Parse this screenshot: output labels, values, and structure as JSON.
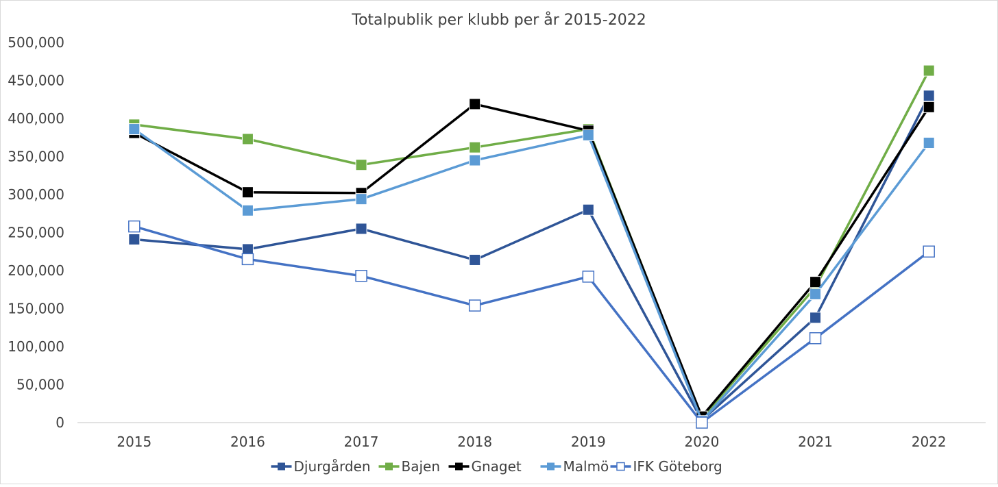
{
  "chart_data": {
    "type": "line",
    "title": "Totalpublik per klubb per år 2015-2022",
    "xlabel": "",
    "ylabel": "",
    "x": [
      "2015",
      "2016",
      "2017",
      "2018",
      "2019",
      "2020",
      "2021",
      "2022"
    ],
    "ylim": [
      0,
      500000
    ],
    "yticks": [
      0,
      50000,
      100000,
      150000,
      200000,
      250000,
      300000,
      350000,
      400000,
      450000,
      500000
    ],
    "ytick_labels": [
      "0",
      "50,000",
      "100,000",
      "150,000",
      "200,000",
      "250,000",
      "300,000",
      "350,000",
      "400,000",
      "450,000",
      "500,000"
    ],
    "grid": false,
    "legend_position": "bottom",
    "series": [
      {
        "name": "Djurgården",
        "color": "#2F5597",
        "marker": "filled-square",
        "values": [
          241000,
          228000,
          255000,
          214000,
          280000,
          3000,
          138000,
          430000
        ]
      },
      {
        "name": "Bajen",
        "color": "#70AD47",
        "marker": "filled-square",
        "values": [
          392000,
          373000,
          339000,
          362000,
          386000,
          6000,
          178000,
          463000
        ]
      },
      {
        "name": "Gnaget",
        "color": "#000000",
        "marker": "filled-square",
        "values": [
          381000,
          303000,
          302000,
          419000,
          384000,
          8000,
          185000,
          415000
        ]
      },
      {
        "name": "Malmö",
        "color": "#5B9BD5",
        "marker": "filled-square",
        "values": [
          386000,
          279000,
          294000,
          345000,
          378000,
          2000,
          169000,
          368000
        ]
      },
      {
        "name": "IFK Göteborg",
        "color": "#4472C4",
        "marker": "hollow-square",
        "values": [
          258000,
          215000,
          193000,
          154000,
          192000,
          0,
          111000,
          225000
        ]
      }
    ]
  }
}
